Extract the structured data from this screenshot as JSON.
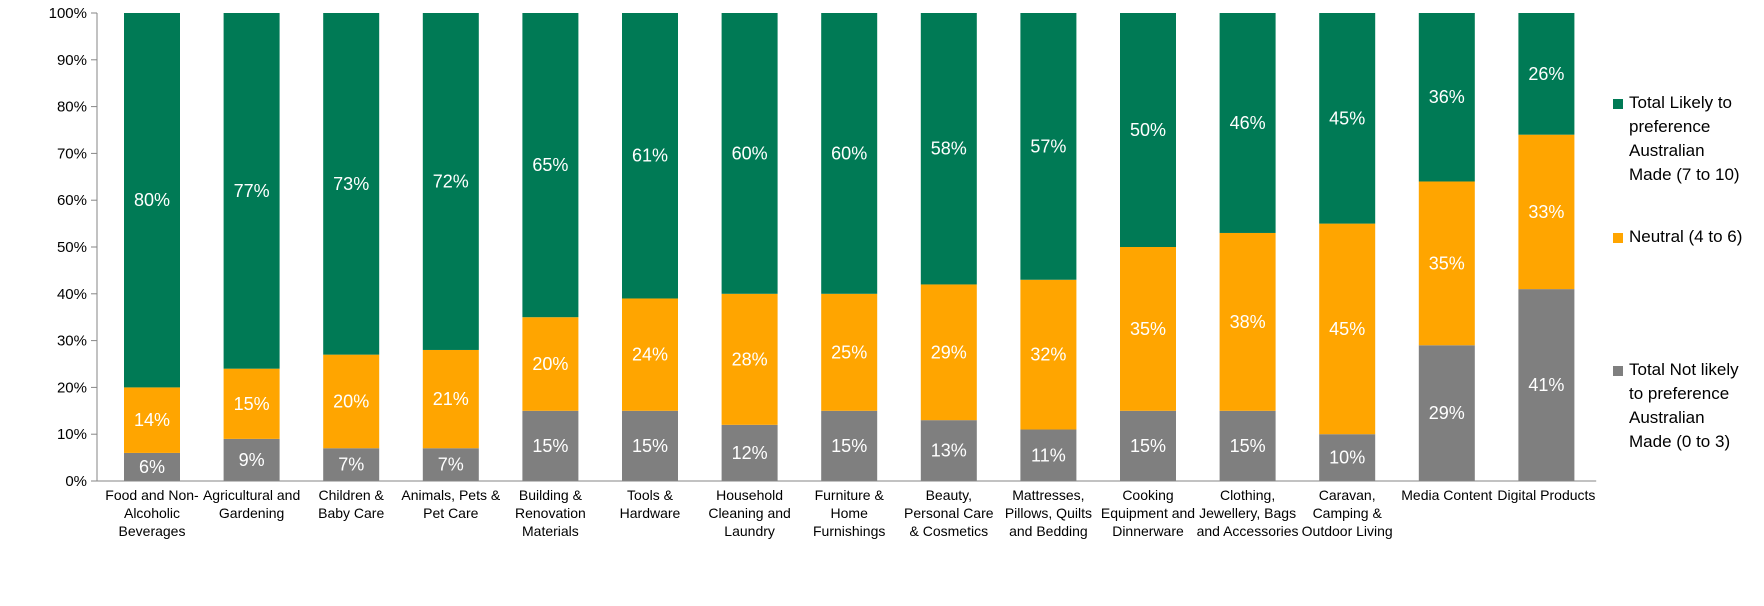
{
  "chart_data": {
    "type": "bar",
    "stacked": true,
    "percent": true,
    "categories": [
      "Food and Non-Alcoholic Beverages",
      "Agricultural and Gardening",
      "Children & Baby Care",
      "Animals, Pets & Pet Care",
      "Building & Renovation Materials",
      "Tools & Hardware",
      "Household Cleaning and Laundry",
      "Furniture & Home Furnishings",
      "Beauty, Personal Care & Cosmetics",
      "Mattresses, Pillows, Quilts and Bedding",
      "Cooking Equipment and Dinnerware",
      "Clothing, Jewellery, Bags and Accessories",
      "Caravan, Camping & Outdoor Living",
      "Media Content",
      "Digital Products"
    ],
    "category_label_lines": [
      [
        "Food and Non-",
        "Alcoholic",
        "Beverages"
      ],
      [
        "Agricultural and",
        "Gardening"
      ],
      [
        "Children &",
        "Baby Care"
      ],
      [
        "Animals, Pets &",
        "Pet Care"
      ],
      [
        "Building &",
        "Renovation",
        "Materials"
      ],
      [
        "Tools &",
        "Hardware"
      ],
      [
        "Household",
        "Cleaning and",
        "Laundry"
      ],
      [
        "Furniture &",
        "Home",
        "Furnishings"
      ],
      [
        "Beauty,",
        "Personal Care",
        "& Cosmetics"
      ],
      [
        "Mattresses,",
        "Pillows, Quilts",
        "and Bedding"
      ],
      [
        "Cooking",
        "Equipment and",
        "Dinnerware"
      ],
      [
        "Clothing,",
        "Jewellery, Bags",
        "and Accessories"
      ],
      [
        "Caravan,",
        "Camping &",
        "Outdoor Living"
      ],
      [
        "Media Content"
      ],
      [
        "Digital Products"
      ]
    ],
    "series": [
      {
        "name": "Total Not likely to preference Australian Made (0 to 3)",
        "legend_lines": [
          "Total Not likely",
          "to preference",
          "Australian",
          "Made (0 to 3)"
        ],
        "color": "#7f7f7f",
        "values": [
          6,
          9,
          7,
          7,
          15,
          15,
          12,
          15,
          13,
          11,
          15,
          15,
          10,
          29,
          41
        ],
        "labels": [
          "6%",
          "9%",
          "7%",
          "7%",
          "15%",
          "15%",
          "12%",
          "15%",
          "13%",
          "11%",
          "15%",
          "15%",
          "10%",
          "29%",
          "41%"
        ]
      },
      {
        "name": "Neutral (4 to 6)",
        "legend_lines": [
          "Neutral (4 to 6)"
        ],
        "color": "#ffa500",
        "values": [
          14,
          15,
          20,
          21,
          20,
          24,
          28,
          25,
          29,
          32,
          35,
          38,
          45,
          35,
          33
        ],
        "labels": [
          "14%",
          "15%",
          "20%",
          "21%",
          "20%",
          "24%",
          "28%",
          "25%",
          "29%",
          "32%",
          "35%",
          "38%",
          "45%",
          "35%",
          "33%"
        ]
      },
      {
        "name": "Total Likely to preference Australian Made (7 to 10)",
        "legend_lines": [
          "Total Likely to",
          "preference",
          "Australian",
          "Made (7 to 10)"
        ],
        "color": "#007a55",
        "values": [
          80,
          77,
          73,
          72,
          65,
          61,
          60,
          60,
          58,
          57,
          50,
          46,
          45,
          36,
          26
        ],
        "labels": [
          "80%",
          "77%",
          "73%",
          "72%",
          "65%",
          "61%",
          "60%",
          "60%",
          "58%",
          "57%",
          "50%",
          "46%",
          "45%",
          "36%",
          "26%"
        ]
      }
    ],
    "y_ticks": [
      "0%",
      "10%",
      "20%",
      "30%",
      "40%",
      "50%",
      "60%",
      "70%",
      "80%",
      "90%",
      "100%"
    ],
    "ylim": [
      0,
      100
    ],
    "grid": false,
    "legend_position": "right",
    "legend_order": [
      2,
      1,
      0
    ]
  }
}
